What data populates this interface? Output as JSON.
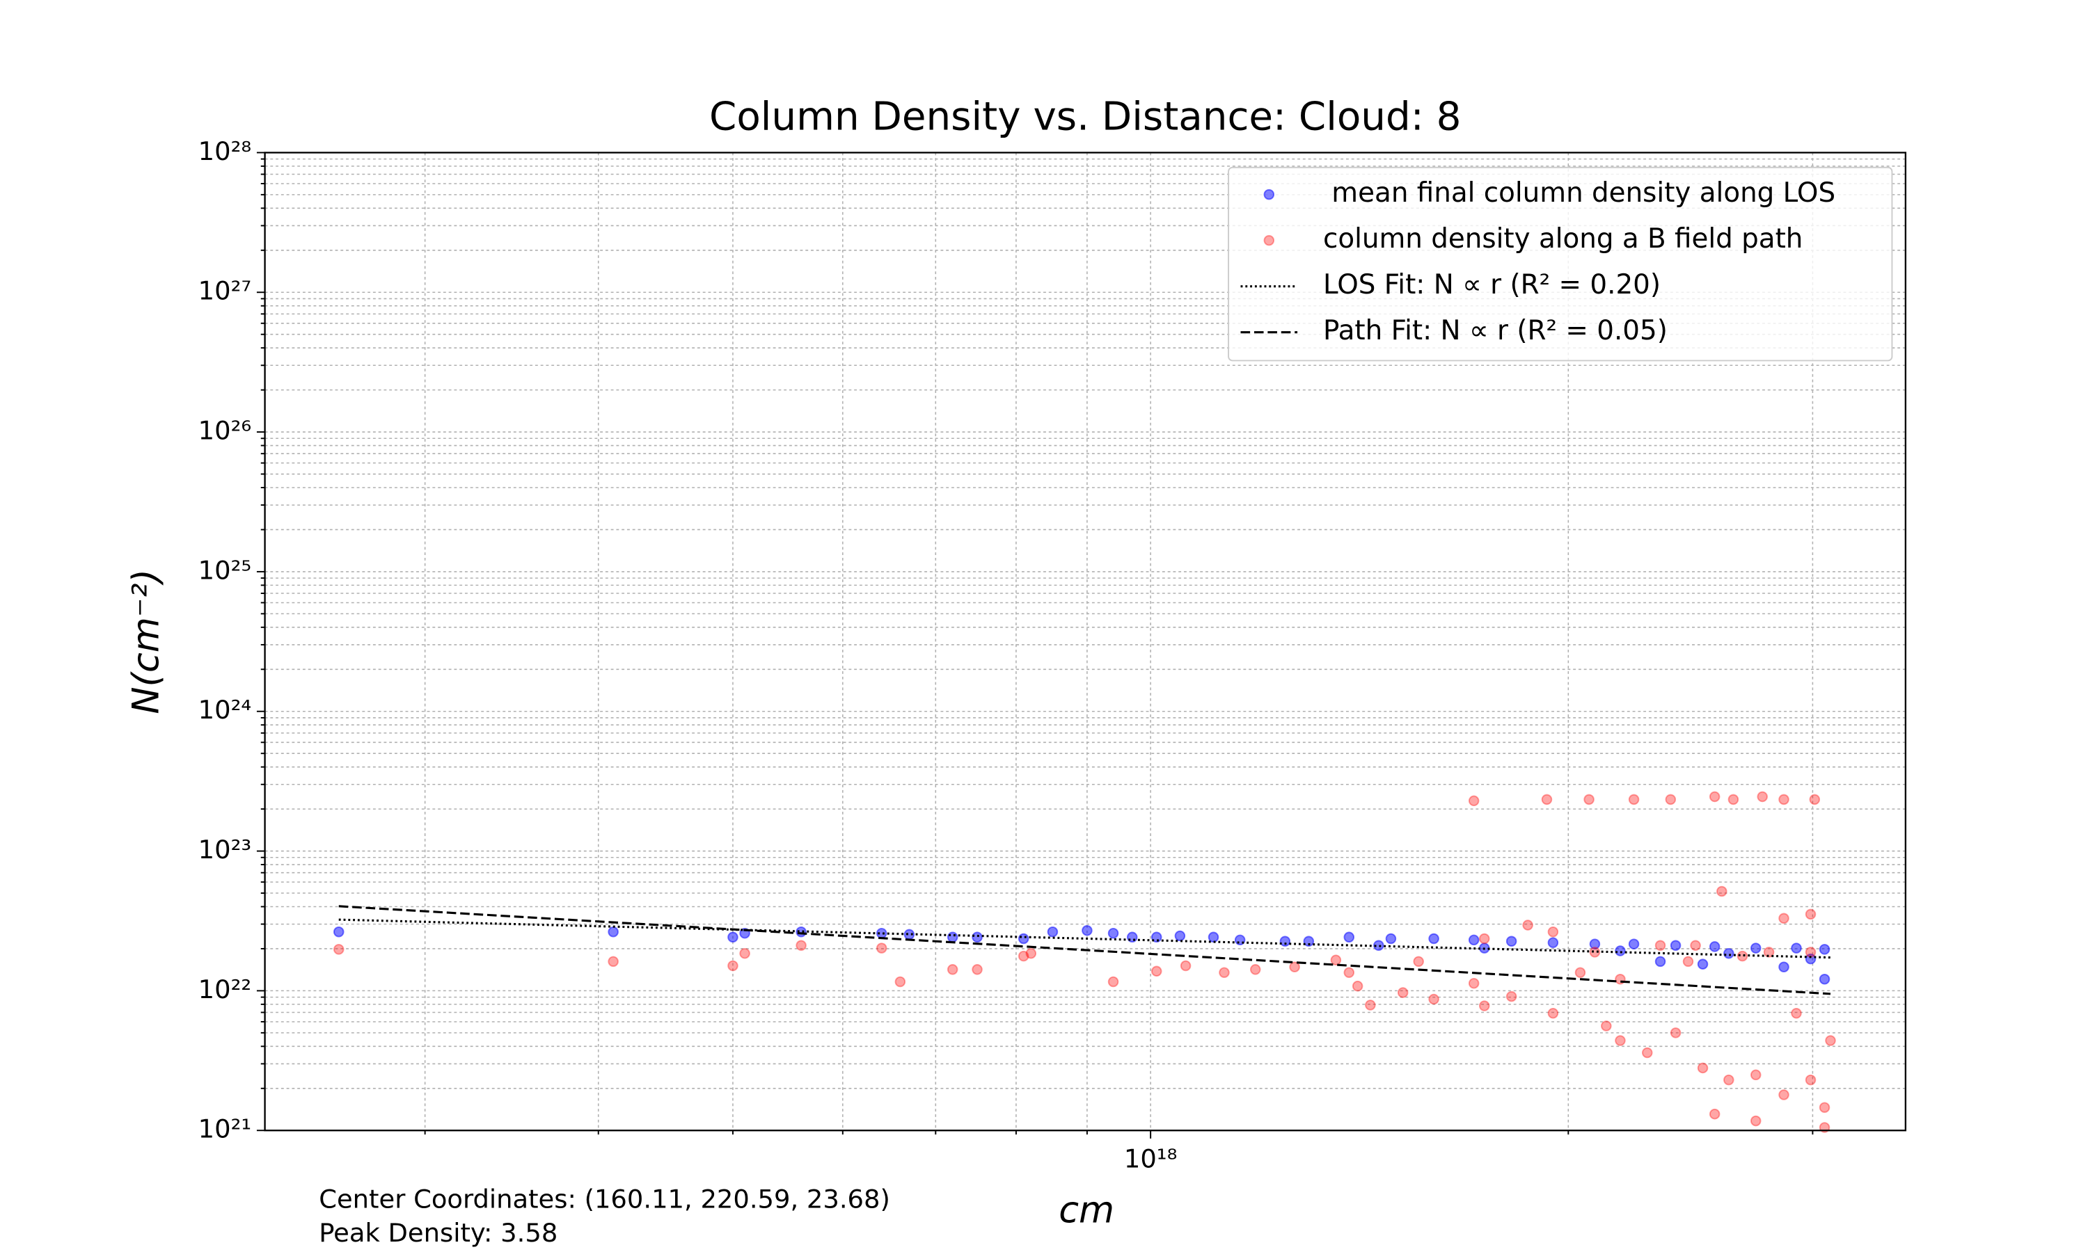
{
  "chart_data": {
    "type": "scatter",
    "title": "Column Density vs. Distance: Cloud: 8",
    "xlabel": "cm",
    "ylabel": "N(cm⁻²)",
    "xscale": "log",
    "yscale": "log",
    "grid": true,
    "legend": "upper right",
    "xlim": [
      2.3e+17,
      3.5e+18
    ],
    "ylim": [
      1e+21,
      1e+28
    ],
    "xticks": [
      {
        "value": 1e+18,
        "label": "10¹⁸"
      }
    ],
    "x_minor_ticks": [
      3e+17,
      4e+17,
      5e+17,
      6e+17,
      7e+17,
      8e+17,
      9e+17,
      2e+18,
      3e+18
    ],
    "yticks": [
      {
        "value": 1e+21,
        "label": "10²¹"
      },
      {
        "value": 1e+22,
        "label": "10²²"
      },
      {
        "value": 1e+23,
        "label": "10²³"
      },
      {
        "value": 1e+24,
        "label": "10²⁴"
      },
      {
        "value": 1e+25,
        "label": "10²⁵"
      },
      {
        "value": 1e+26,
        "label": "10²⁶"
      },
      {
        "value": 1e+27,
        "label": "10²⁷"
      },
      {
        "value": 1e+28,
        "label": "10²⁸"
      }
    ],
    "y_minor_ticks": [
      2e+21,
      3e+21,
      4e+21,
      5e+21,
      6e+21,
      7e+21,
      8e+21,
      9e+21,
      2e+22,
      3e+22,
      4e+22,
      5e+22,
      6e+22,
      7e+22,
      8e+22,
      9e+22,
      2e+23,
      3e+23,
      4e+23,
      5e+23,
      6e+23,
      7e+23,
      8e+23,
      9e+23,
      2e+24,
      3e+24,
      4e+24,
      5e+24,
      6e+24,
      7e+24,
      8e+24,
      9e+24,
      2e+25,
      3e+25,
      4e+25,
      5e+25,
      6e+25,
      7e+25,
      8e+25,
      9e+25,
      2e+26,
      3e+26,
      4e+26,
      5e+26,
      6e+26,
      7e+26,
      8e+26,
      9e+26,
      2e+27,
      3e+27,
      4e+27,
      5e+27,
      6e+27,
      7e+27,
      8e+27,
      9e+27
    ],
    "annotations": [
      "Center Coordinates: (160.11, 220.59, 23.68)",
      "Peak Density: 3.58"
    ],
    "series": [
      {
        "name": " mean final column density along LOS",
        "style": "scatter",
        "color": "#0000ff",
        "opacity": 0.5,
        "x": [
          2.6e+17,
          4.1e+17,
          5e+17,
          5.1e+17,
          5.6e+17,
          6.4e+17,
          6.7e+17,
          7.2e+17,
          7.5e+17,
          8.1e+17,
          8.5e+17,
          9e+17,
          9.4e+17,
          9.7e+17,
          1.01e+18,
          1.05e+18,
          1.11e+18,
          1.16e+18,
          1.25e+18,
          1.3e+18,
          1.39e+18,
          1.49e+18,
          1.6e+18,
          1.71e+18,
          1.82e+18,
          1.95e+18,
          2.09e+18,
          2.23e+18,
          2.39e+18,
          2.55e+18,
          2.73e+18,
          2.92e+18,
          3.06e+18,
          1.46e+18,
          1.74e+18,
          2.18e+18,
          2.61e+18,
          2.99e+18,
          2.5e+18,
          2.86e+18,
          3.06e+18,
          2.33e+18
        ],
        "values": [
          2.64e+22,
          2.64e+22,
          2.42e+22,
          2.58e+22,
          2.64e+22,
          2.58e+22,
          2.53e+22,
          2.42e+22,
          2.42e+22,
          2.36e+22,
          2.64e+22,
          2.7e+22,
          2.58e+22,
          2.42e+22,
          2.42e+22,
          2.47e+22,
          2.42e+22,
          2.31e+22,
          2.26e+22,
          2.26e+22,
          2.42e+22,
          2.36e+22,
          2.36e+22,
          2.31e+22,
          2.26e+22,
          2.21e+22,
          2.16e+22,
          2.16e+22,
          2.11e+22,
          2.07e+22,
          2.02e+22,
          2.02e+22,
          1.98e+22,
          2.11e+22,
          2.02e+22,
          1.93e+22,
          1.85e+22,
          1.69e+22,
          1.55e+22,
          1.48e+22,
          1.21e+22,
          1.62e+22
        ]
      },
      {
        "name": "column density along a B field path",
        "style": "scatter",
        "color": "#ff0000",
        "opacity": 0.35,
        "x": [
          2.6e+17,
          4.1e+17,
          5e+17,
          5.1e+17,
          5.6e+17,
          6.4e+17,
          6.6e+17,
          7.2e+17,
          7.5e+17,
          8.1e+17,
          8.2e+17,
          9.4e+17,
          1.01e+18,
          1.06e+18,
          1.13e+18,
          1.19e+18,
          1.27e+18,
          1.36e+18,
          1.41e+18,
          1.44e+18,
          1.52e+18,
          1.6e+18,
          1.71e+18,
          1.74e+18,
          1.82e+18,
          1.95e+18,
          2.04e+18,
          2.13e+18,
          2.18e+18,
          2.28e+18,
          2.39e+18,
          2.5e+18,
          2.61e+18,
          2.73e+18,
          2.86e+18,
          2.99e+18,
          3.06e+18,
          2.55e+18,
          2.73e+18,
          3.06e+18,
          2.86e+18,
          2.99e+18,
          2.58e+18,
          2.33e+18,
          2.44e+18,
          2.67e+18,
          2.79e+18,
          2.99e+18,
          1.71e+18,
          1.93e+18,
          2.07e+18,
          2.23e+18,
          2.37e+18,
          2.55e+18,
          2.63e+18,
          2.76e+18,
          2.86e+18,
          3.01e+18,
          1.95e+18,
          1.74e+18,
          1.87e+18,
          1.39e+18,
          1.56e+18,
          2.18e+18,
          2.92e+18,
          3.09e+18,
          2.47e+18,
          2.09e+18
        ],
        "values": [
          1.98e+22,
          1.62e+22,
          1.51e+22,
          1.85e+22,
          2.11e+22,
          2.02e+22,
          1.16e+22,
          1.42e+22,
          1.42e+22,
          1.77e+22,
          1.85e+22,
          1.16e+22,
          1.38e+22,
          1.51e+22,
          1.35e+22,
          1.42e+22,
          1.48e+22,
          1.66e+22,
          1.08e+22,
          7.9e+21,
          9.7e+21,
          8.7e+21,
          1.13e+22,
          7.8e+21,
          9.1e+21,
          6.9e+21,
          1.35e+22,
          5.6e+21,
          4.4e+21,
          3.6e+21,
          5e+21,
          2.8e+21,
          2.3e+21,
          2.5e+21,
          1.8e+21,
          2.3e+21,
          1.46e+21,
          1.31e+21,
          1.17e+21,
          1.05e+21,
          3.3e+22,
          3.53e+22,
          5.15e+22,
          2.11e+22,
          1.62e+22,
          1.77e+22,
          1.89e+22,
          1.89e+22,
          2.29e+23,
          2.34e+23,
          2.34e+23,
          2.34e+23,
          2.34e+23,
          2.45e+23,
          2.34e+23,
          2.45e+23,
          2.34e+23,
          2.34e+23,
          2.64e+22,
          2.36e+22,
          2.95e+22,
          1.35e+22,
          1.62e+22,
          1.21e+22,
          6.9e+21,
          4.4e+21,
          2.11e+22,
          1.89e+22
        ]
      },
      {
        "name": "LOS Fit: N ∝ r (R² = 0.20)",
        "style": "dotted",
        "color": "#000000",
        "x": [
          2.6e+17,
          3.09e+18
        ],
        "values": [
          3.23e+22,
          1.73e+22
        ]
      },
      {
        "name": "Path Fit: N ∝ r (R² = 0.05)",
        "style": "dashed",
        "color": "#000000",
        "x": [
          2.6e+17,
          3.09e+18
        ],
        "values": [
          4.03e+22,
          9.5e+21
        ]
      }
    ]
  }
}
